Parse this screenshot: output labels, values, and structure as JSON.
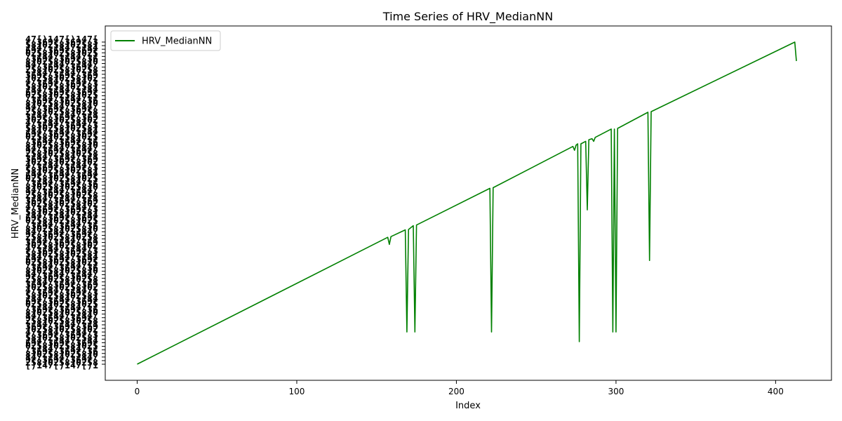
{
  "chart_data": {
    "type": "line",
    "title": "Time Series of HRV_MedianNN",
    "xlabel": "Index",
    "ylabel": "HRV_MedianNN",
    "xlim": [
      -20,
      435
    ],
    "xticks": [
      0,
      100,
      200,
      300,
      400
    ],
    "xtick_labels": [
      "0",
      "100",
      "200",
      "300",
      "400"
    ],
    "ylim": [
      -0.05,
      1.05
    ],
    "grid": false,
    "legend": {
      "position": "top-left",
      "entries": [
        "HRV_MedianNN"
      ]
    },
    "series": [
      {
        "name": "HRV_MedianNN",
        "color": "#008000",
        "points": [
          [
            0,
            0.0
          ],
          [
            157,
            0.394
          ],
          [
            158,
            0.372
          ],
          [
            159,
            0.396
          ],
          [
            168,
            0.417
          ],
          [
            169,
            0.1
          ],
          [
            170,
            0.418
          ],
          [
            173,
            0.43
          ],
          [
            174,
            0.1
          ],
          [
            175,
            0.432
          ],
          [
            221,
            0.546
          ],
          [
            222,
            0.1
          ],
          [
            223,
            0.548
          ],
          [
            273,
            0.676
          ],
          [
            274,
            0.664
          ],
          [
            275,
            0.68
          ],
          [
            276,
            0.684
          ],
          [
            277,
            0.07
          ],
          [
            278,
            0.684
          ],
          [
            281,
            0.692
          ],
          [
            282,
            0.479
          ],
          [
            283,
            0.697
          ],
          [
            285,
            0.7
          ],
          [
            286,
            0.692
          ],
          [
            287,
            0.704
          ],
          [
            297,
            0.73
          ],
          [
            298,
            0.1
          ],
          [
            299,
            0.73
          ],
          [
            300,
            0.1
          ],
          [
            301,
            0.732
          ],
          [
            320,
            0.782
          ],
          [
            321,
            0.322
          ],
          [
            322,
            0.784
          ],
          [
            412,
            1.0
          ],
          [
            413,
            0.941
          ]
        ]
      }
    ]
  }
}
